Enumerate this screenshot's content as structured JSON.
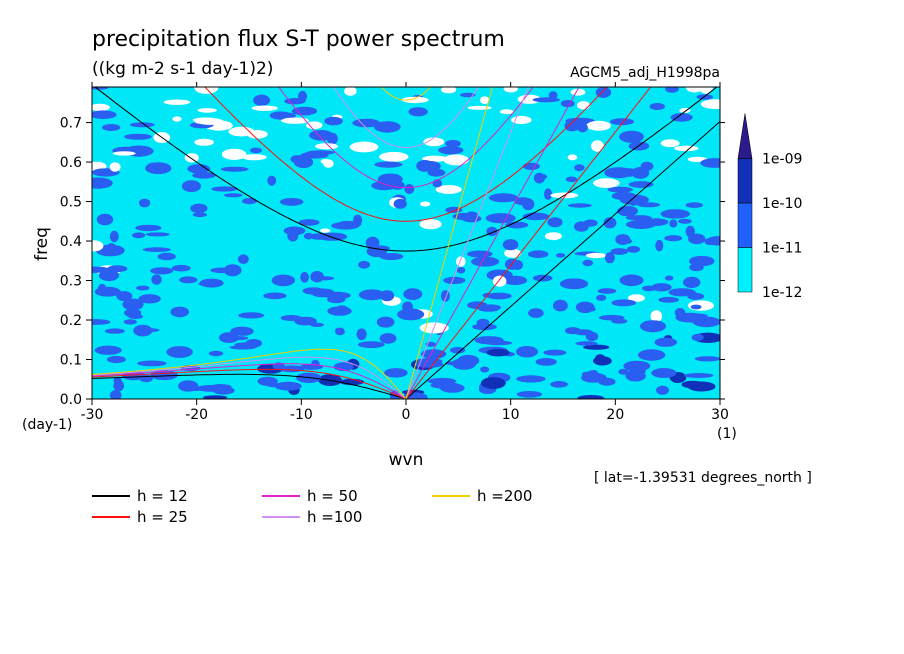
{
  "chart_data": {
    "type": "heatmap",
    "title": "precipitation flux S-T power spectrum",
    "subtitle": "((kg m-2 s-1 day-1)2)",
    "model_label": "AGCM5_adj_H1998pa",
    "xlabel": "wvn",
    "ylabel": "freq",
    "x_unit": "(1)",
    "y_unit": "(day-1)",
    "xlim": [
      -30,
      30
    ],
    "ylim": [
      0,
      0.79
    ],
    "x_ticks": [
      -30,
      -20,
      -10,
      0,
      10,
      20,
      30
    ],
    "x_tick_labels": [
      "-30",
      "-20",
      "-10",
      "0",
      "10",
      "20",
      "30"
    ],
    "y_ticks": [
      0,
      0.1,
      0.2,
      0.3,
      0.4,
      0.5,
      0.6,
      0.7
    ],
    "y_tick_labels": [
      "0.0",
      "0.1",
      "0.2",
      "0.3",
      "0.4",
      "0.5",
      "0.6",
      "0.7"
    ],
    "annotation": "[ lat=-1.39531 degrees_north ]",
    "colorbar": {
      "levels": [
        "1e-12",
        "1e-11",
        "1e-10",
        "1e-09"
      ],
      "colors": [
        "#00f0ff",
        "#2060ff",
        "#1030b8",
        "#2a1a8c"
      ],
      "extend": "max"
    },
    "contour_fill_colors": {
      "below": "#ffffff",
      "level1": "#00e8f8",
      "level2": "#2a5ef0",
      "level3": "#1030b8"
    },
    "dispersion_curves": [
      {
        "label": "h = 12",
        "h": 12,
        "color": "#000000"
      },
      {
        "label": "h = 25",
        "h": 25,
        "color": "#ff1010"
      },
      {
        "label": "h = 50",
        "h": 50,
        "color": "#e020c8"
      },
      {
        "label": "h =100",
        "h": 100,
        "color": "#d090f0"
      },
      {
        "label": "h =200",
        "h": 200,
        "color": "#f0d000"
      }
    ]
  }
}
